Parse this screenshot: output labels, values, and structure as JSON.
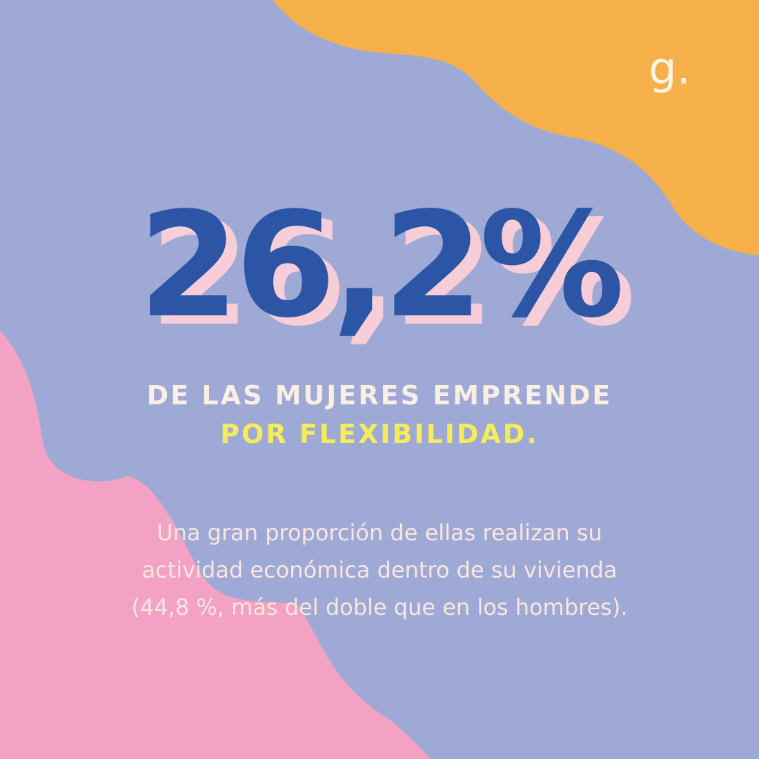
{
  "logo": {
    "text": "g."
  },
  "statistic": {
    "value": "26,2%"
  },
  "headline": {
    "line1": "DE LAS MUJERES EMPRENDE",
    "line2": "POR FLEXIBILIDAD."
  },
  "body": {
    "line1": "Una gran proporción de ellas realizan su",
    "line2": "actividad económica dentro de su vivienda",
    "line3": "(44,8 %, más del doble que en los hombres)."
  },
  "colors": {
    "background": "#9eaad5",
    "orange_blob": "#f5b04a",
    "pink_blob": "#f4a2c4",
    "statistic": "#2d55a5",
    "statistic_shadow": "#f7cdd8",
    "headline_cream": "#fbeee2",
    "headline_yellow": "#f5ec5b",
    "body_text": "#fbe6df",
    "logo": "#fbf5e6"
  }
}
